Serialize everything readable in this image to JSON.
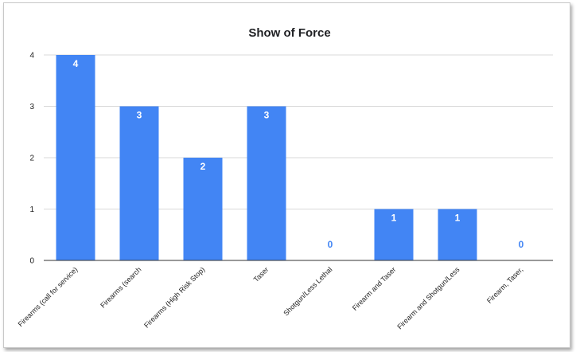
{
  "chart_data": {
    "type": "bar",
    "title": "Show of Force",
    "xlabel": "",
    "ylabel": "",
    "ylim": [
      0,
      4
    ],
    "yticks": [
      "0",
      "1",
      "2",
      "3",
      "4"
    ],
    "grid": true,
    "legend": "none",
    "categories": [
      "Firearms (call for service)",
      "Firearms (search",
      "Firearms (High Risk Stop)",
      "Taser",
      "Shotgun/Less Lethal",
      "Firearm and Taser",
      "Firearm and Shotgun/Less",
      "Firearm, Taser,"
    ],
    "values": [
      4,
      3,
      2,
      3,
      0,
      1,
      1,
      0
    ],
    "data_labels": [
      "4",
      "3",
      "2",
      "3",
      "0",
      "1",
      "1",
      "0"
    ],
    "colors": {
      "bar": "#4285f4",
      "label_inside": "#ffffff",
      "label_outside": "#4285f4",
      "grid": "#d9d9d9",
      "axis": "#333333"
    }
  }
}
